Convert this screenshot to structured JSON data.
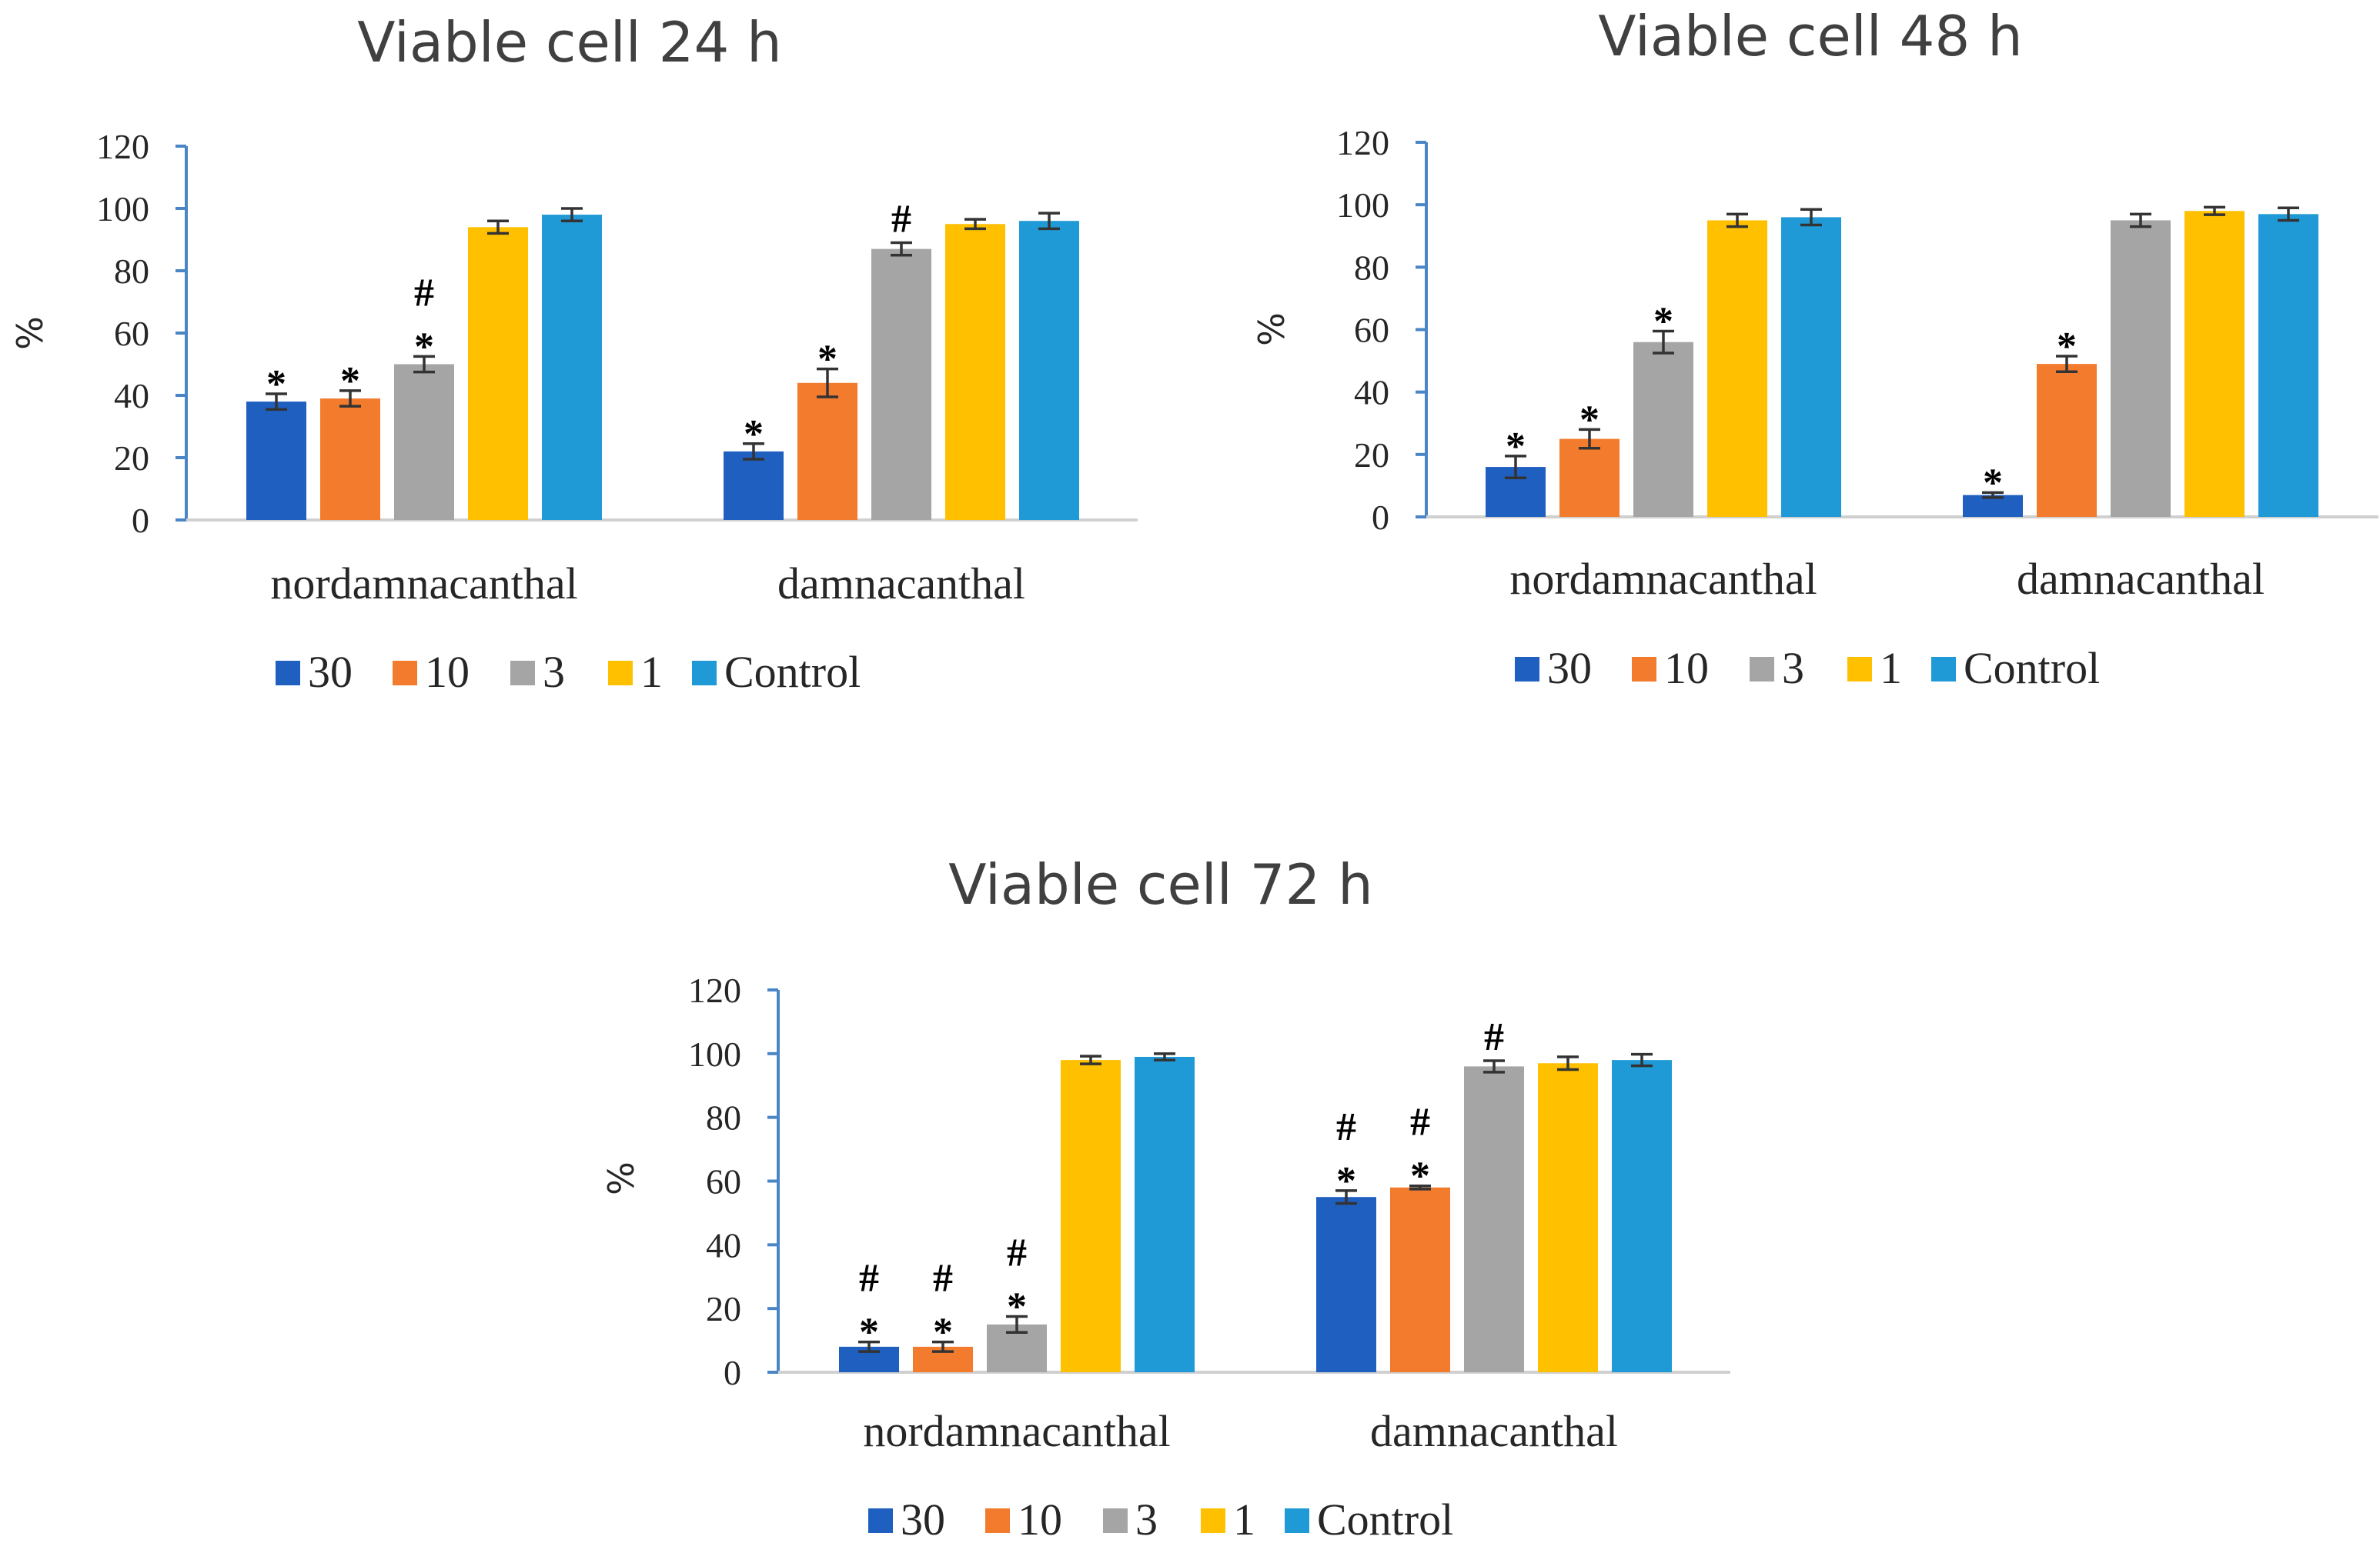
{
  "y_axis_label": "%",
  "colors": {
    "30": "#1f5fbf",
    "10": "#f27b2e",
    "3": "#a5a5a5",
    "1": "#ffc000",
    "Control": "#1f9ad6",
    "axis": "#4a86c5",
    "error_bar": "#333333"
  },
  "chart_data": [
    {
      "type": "bar",
      "title": "Viable cell 24 h",
      "xlabel": "",
      "ylabel": "%",
      "ylim": [
        0,
        120
      ],
      "yticks": [
        "0",
        "20",
        "40",
        "60",
        "80",
        "100",
        "120"
      ],
      "categories": [
        "nordamnacanthal",
        "damnacanthal"
      ],
      "legend": [
        "30",
        "10",
        "3",
        "1",
        "Control"
      ],
      "series": [
        {
          "name": "30",
          "values": [
            38,
            22
          ],
          "errors": [
            2.5,
            2.5
          ],
          "annotations": [
            "*",
            "*"
          ]
        },
        {
          "name": "10",
          "values": [
            39,
            44
          ],
          "errors": [
            2.5,
            4.5
          ],
          "annotations": [
            "*",
            "*"
          ]
        },
        {
          "name": "3",
          "values": [
            50,
            87
          ],
          "errors": [
            2.5,
            2
          ],
          "annotations": [
            "*#",
            "#"
          ]
        },
        {
          "name": "1",
          "values": [
            94,
            95
          ],
          "errors": [
            2,
            1.5
          ],
          "annotations": [
            "",
            ""
          ]
        },
        {
          "name": "Control",
          "values": [
            98,
            96
          ],
          "errors": [
            2,
            2.5
          ],
          "annotations": [
            "",
            ""
          ]
        }
      ]
    },
    {
      "type": "bar",
      "title": "Viable cell 48 h",
      "xlabel": "",
      "ylabel": "%",
      "ylim": [
        0,
        120
      ],
      "yticks": [
        "0",
        "20",
        "40",
        "60",
        "80",
        "100",
        "120"
      ],
      "categories": [
        "nordamnacanthal",
        "damnacanthal"
      ],
      "legend": [
        "30",
        "10",
        "3",
        "1",
        "Control"
      ],
      "series": [
        {
          "name": "30",
          "values": [
            16,
            7
          ],
          "errors": [
            3.5,
            0.8
          ],
          "annotations": [
            "*",
            "*"
          ]
        },
        {
          "name": "10",
          "values": [
            25,
            49
          ],
          "errors": [
            3,
            2.5
          ],
          "annotations": [
            "*",
            "*"
          ]
        },
        {
          "name": "3",
          "values": [
            56,
            95
          ],
          "errors": [
            3.5,
            2
          ],
          "annotations": [
            "*",
            ""
          ]
        },
        {
          "name": "1",
          "values": [
            95,
            98
          ],
          "errors": [
            2,
            1.2
          ],
          "annotations": [
            "",
            ""
          ]
        },
        {
          "name": "Control",
          "values": [
            96,
            97
          ],
          "errors": [
            2.5,
            2
          ],
          "annotations": [
            "",
            ""
          ]
        }
      ]
    },
    {
      "type": "bar",
      "title": "Viable cell 72 h",
      "xlabel": "",
      "ylabel": "%",
      "ylim": [
        0,
        120
      ],
      "yticks": [
        "0",
        "20",
        "40",
        "60",
        "80",
        "100",
        "120"
      ],
      "categories": [
        "nordamnacanthal",
        "damnacanthal"
      ],
      "legend": [
        "30",
        "10",
        "3",
        "1",
        "Control"
      ],
      "series": [
        {
          "name": "30",
          "values": [
            8,
            55
          ],
          "errors": [
            1.5,
            2
          ],
          "annotations": [
            "*#",
            "*#"
          ]
        },
        {
          "name": "10",
          "values": [
            8,
            58
          ],
          "errors": [
            1.5,
            0.5
          ],
          "annotations": [
            "*#",
            "*#"
          ]
        },
        {
          "name": "3",
          "values": [
            15,
            96
          ],
          "errors": [
            2.5,
            1.8
          ],
          "annotations": [
            "*#",
            "#"
          ]
        },
        {
          "name": "1",
          "values": [
            98,
            97
          ],
          "errors": [
            1.2,
            2
          ],
          "annotations": [
            "",
            ""
          ]
        },
        {
          "name": "Control",
          "values": [
            99,
            98
          ],
          "errors": [
            1,
            1.8
          ],
          "annotations": [
            "",
            ""
          ]
        }
      ]
    }
  ]
}
